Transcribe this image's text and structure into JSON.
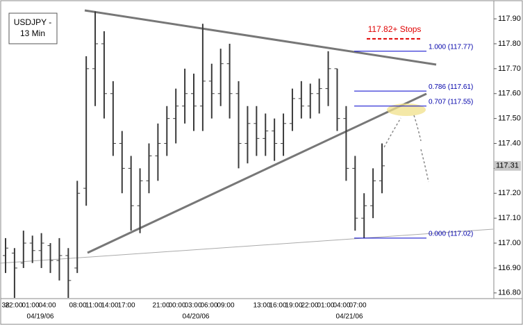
{
  "chart_data": {
    "type": "ohlc",
    "title": "USDJPY -",
    "subtitle": "13 Min",
    "color": "#3a3a3a",
    "open": [
      116.95,
      116.96,
      116.92,
      117.0,
      116.97,
      116.99,
      116.93,
      116.95,
      116.9,
      117.22,
      117.7,
      117.8,
      117.6,
      117.4,
      117.3,
      117.15,
      117.25,
      117.35,
      117.4,
      117.5,
      117.55,
      117.6,
      117.55,
      117.65,
      117.6,
      117.72,
      117.6,
      117.4,
      117.48,
      117.42,
      117.45,
      117.4,
      117.48,
      117.58,
      117.55,
      117.6,
      117.62,
      117.7,
      117.5,
      117.3,
      117.1,
      117.15,
      117.25
    ],
    "high": [
      117.02,
      116.98,
      117.05,
      117.03,
      117.04,
      117.0,
      117.02,
      116.98,
      117.25,
      117.75,
      117.93,
      117.85,
      117.65,
      117.45,
      117.35,
      117.3,
      117.4,
      117.48,
      117.55,
      117.62,
      117.7,
      117.68,
      117.88,
      117.72,
      117.78,
      117.8,
      117.65,
      117.55,
      117.55,
      117.52,
      117.5,
      117.52,
      117.62,
      117.65,
      117.64,
      117.66,
      117.77,
      117.7,
      117.55,
      117.35,
      117.2,
      117.3,
      117.4
    ],
    "low": [
      116.88,
      116.78,
      116.9,
      116.92,
      116.9,
      116.88,
      116.85,
      116.78,
      116.88,
      117.15,
      117.55,
      117.5,
      117.35,
      117.2,
      117.05,
      117.04,
      117.2,
      117.25,
      117.35,
      117.4,
      117.48,
      117.45,
      117.45,
      117.5,
      117.55,
      117.5,
      117.3,
      117.32,
      117.35,
      117.35,
      117.33,
      117.35,
      117.45,
      117.5,
      117.5,
      117.52,
      117.55,
      117.45,
      117.25,
      117.05,
      117.02,
      117.1,
      117.2
    ],
    "close": [
      116.98,
      116.9,
      117.0,
      116.97,
      117.0,
      116.93,
      116.95,
      116.85,
      117.2,
      117.7,
      117.8,
      117.6,
      117.4,
      117.3,
      117.15,
      117.25,
      117.35,
      117.4,
      117.5,
      117.55,
      117.6,
      117.55,
      117.65,
      117.6,
      117.72,
      117.6,
      117.4,
      117.48,
      117.42,
      117.45,
      117.4,
      117.48,
      117.58,
      117.55,
      117.6,
      117.62,
      117.7,
      117.5,
      117.3,
      117.1,
      117.15,
      117.25,
      117.31
    ],
    "ylim": [
      116.78,
      117.97
    ],
    "yticks": [
      {
        "value": 116.8,
        "label": "116.80"
      },
      {
        "value": 116.9,
        "label": "116.90"
      },
      {
        "value": 117.0,
        "label": "117.00"
      },
      {
        "value": 117.1,
        "label": "117.10"
      },
      {
        "value": 117.2,
        "label": "117.20"
      },
      {
        "value": 117.3,
        "label": "117.30"
      },
      {
        "value": 117.4,
        "label": "117.40"
      },
      {
        "value": 117.5,
        "label": "117.50"
      },
      {
        "value": 117.6,
        "label": "117.60"
      },
      {
        "value": 117.7,
        "label": "117.70"
      },
      {
        "value": 117.8,
        "label": "117.80"
      },
      {
        "value": 117.9,
        "label": "117.90"
      }
    ],
    "last_price": {
      "value": 117.31,
      "label": "117.31"
    },
    "x_labels": [
      "38",
      "22:00",
      "01:00",
      "04:00",
      "08:00",
      "11:00",
      "14:00",
      "17:00",
      "21:00",
      "00:00",
      "03:00",
      "06:00",
      "09:00",
      "13:00",
      "16:00",
      "19:00",
      "22:00",
      "01:00",
      "04:00",
      "07:00"
    ],
    "dates": [
      "04/19/06",
      "04/20/06",
      "04/21/06"
    ],
    "fib_levels": [
      {
        "label": "1.000 (117.77)",
        "value": 117.77
      },
      {
        "label": "0.786 (117.61)",
        "value": 117.61
      },
      {
        "label": "0.707 (117.55)",
        "value": 117.55
      },
      {
        "label": "0.000 (117.02)",
        "value": 117.02
      }
    ],
    "stops": {
      "label": "117.82+ Stops",
      "value": 117.82
    },
    "grid": false
  }
}
